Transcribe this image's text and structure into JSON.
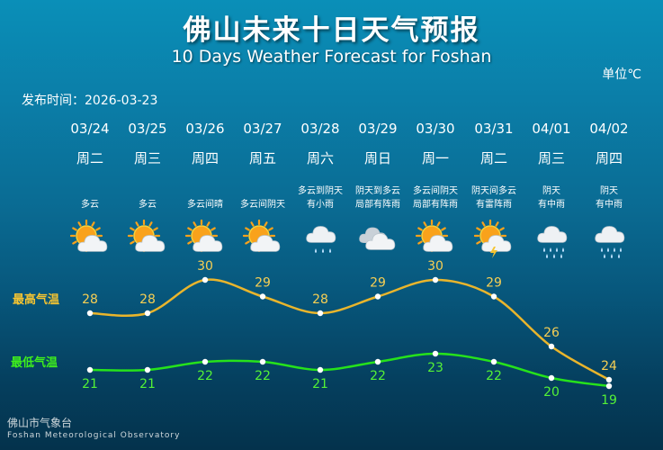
{
  "header": {
    "title": "佛山未来十日天气预报",
    "subtitle": "10 Days Weather Forecast for Foshan",
    "unit": "单位℃",
    "publish_time": "发布时间：2026-03-23"
  },
  "labels": {
    "high": "最高气温",
    "low": "最低气温"
  },
  "colors": {
    "high_line": "#e9b52c",
    "low_line": "#26e21b",
    "background": "#0a7fa8"
  },
  "days": [
    {
      "date": "03/24",
      "weekday": "周二",
      "cond1": "多云",
      "cond2": "",
      "icon": "partly-cloudy-icon",
      "high": 28,
      "low": 21
    },
    {
      "date": "03/25",
      "weekday": "周三",
      "cond1": "多云",
      "cond2": "",
      "icon": "partly-cloudy-icon",
      "high": 28,
      "low": 21
    },
    {
      "date": "03/26",
      "weekday": "周四",
      "cond1": "多云间晴",
      "cond2": "",
      "icon": "partly-cloudy-icon",
      "high": 30,
      "low": 22
    },
    {
      "date": "03/27",
      "weekday": "周五",
      "cond1": "多云间阴天",
      "cond2": "",
      "icon": "partly-cloudy-icon",
      "high": 29,
      "low": 22
    },
    {
      "date": "03/28",
      "weekday": "周六",
      "cond1": "多云到阴天",
      "cond2": "有小雨",
      "icon": "light-rain-icon",
      "high": 28,
      "low": 21
    },
    {
      "date": "03/29",
      "weekday": "周日",
      "cond1": "阴天到多云",
      "cond2": "局部有阵雨",
      "icon": "overcast-icon",
      "high": 29,
      "low": 22
    },
    {
      "date": "03/30",
      "weekday": "周一",
      "cond1": "多云间阴天",
      "cond2": "局部有阵雨",
      "icon": "partly-cloudy-icon",
      "high": 30,
      "low": 23
    },
    {
      "date": "03/31",
      "weekday": "周二",
      "cond1": "阴天间多云",
      "cond2": "有雷阵雨",
      "icon": "thunderstorm-icon",
      "high": 29,
      "low": 22
    },
    {
      "date": "04/01",
      "weekday": "周三",
      "cond1": "阴天",
      "cond2": "有中雨",
      "icon": "moderate-rain-icon",
      "high": 26,
      "low": 20
    },
    {
      "date": "04/02",
      "weekday": "周四",
      "cond1": "阴天",
      "cond2": "有中雨",
      "icon": "moderate-rain-icon",
      "high": 24,
      "low": 19
    }
  ],
  "footer": {
    "cn": "佛山市气象台",
    "en": "Foshan Meteorological Observatory"
  }
}
